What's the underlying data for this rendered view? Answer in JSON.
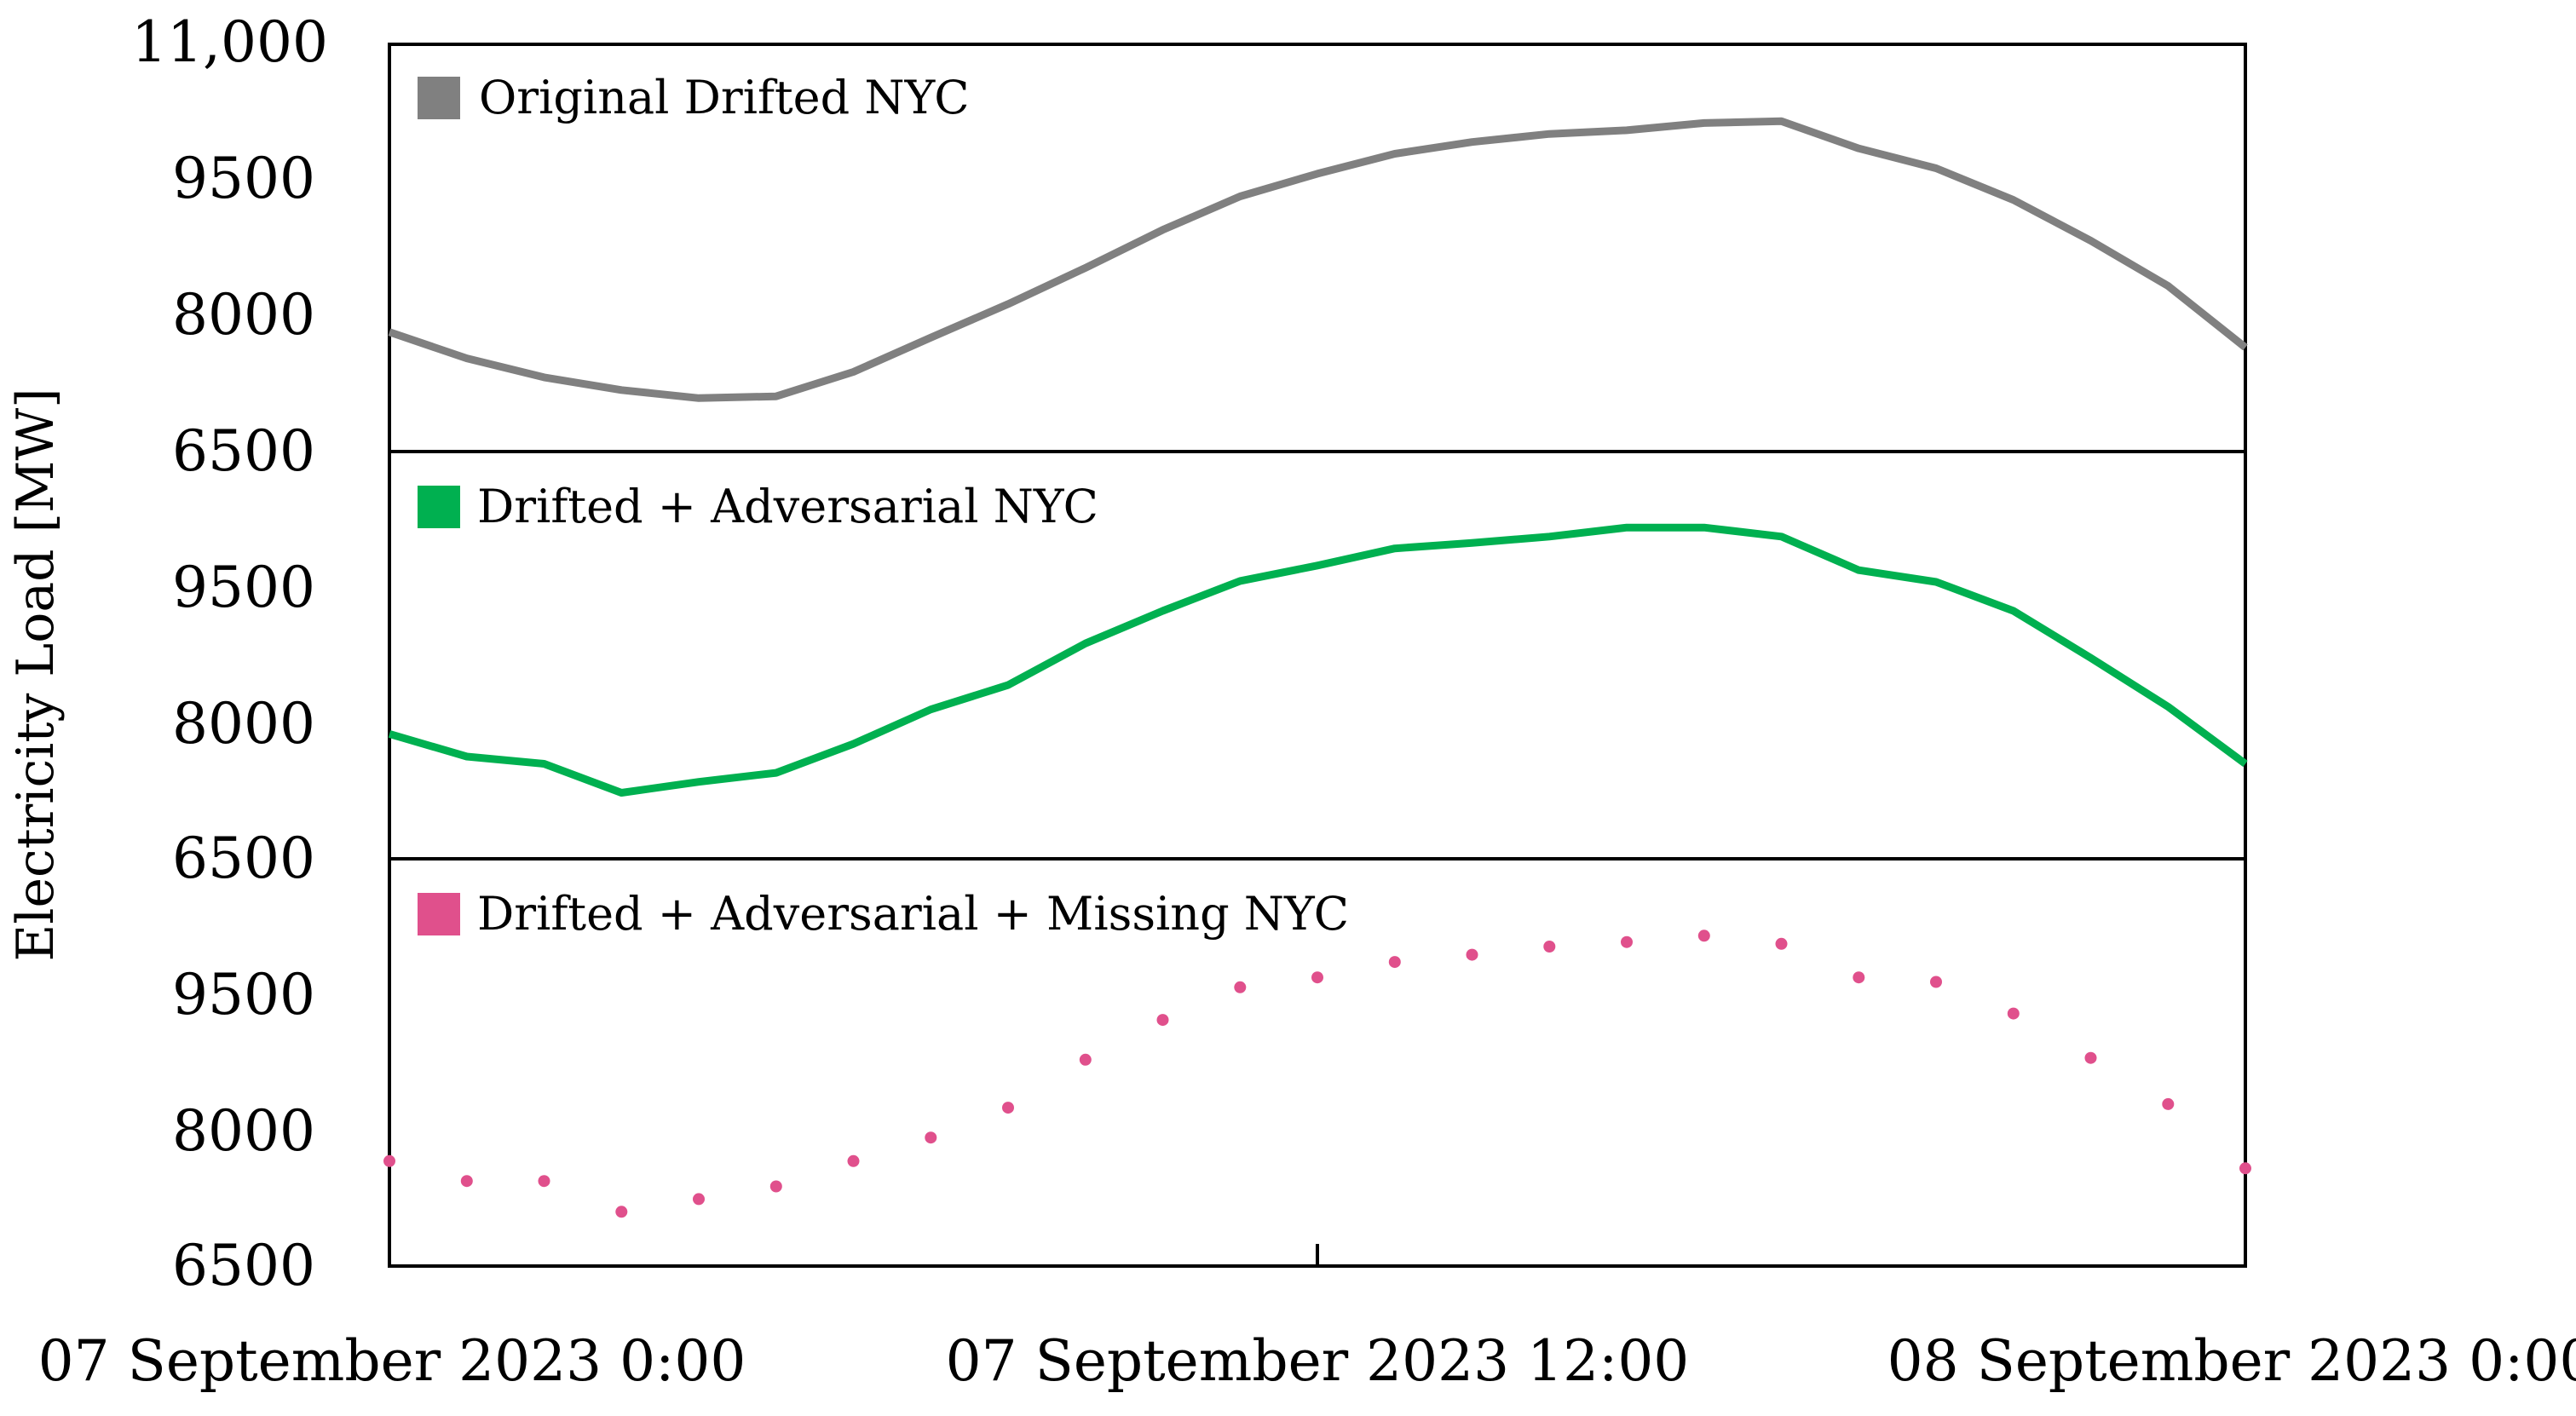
{
  "chart_data": {
    "type": "line",
    "ylabel": "Electricity Load [MW]",
    "x_ticks": [
      "07 September 2023 0:00",
      "07 September 2023 12:00",
      "08 September 2023 0:00"
    ],
    "x_range": [
      "07 September 2023 0:00",
      "08 September 2023 0:00"
    ],
    "y_ticks_top": [
      "11,000",
      "9500",
      "8000",
      "6500"
    ],
    "y_ticks_middle": [
      "9500",
      "8000",
      "6500"
    ],
    "y_ticks_bottom": [
      "9500",
      "8000",
      "6500"
    ],
    "ylim": [
      6500,
      11000
    ],
    "x_hours": [
      0,
      1,
      2,
      3,
      4,
      5,
      6,
      7,
      8,
      9,
      10,
      11,
      12,
      13,
      14,
      15,
      16,
      17,
      18,
      19,
      20,
      21,
      22,
      23,
      24
    ],
    "series": [
      {
        "name": "Original Drifted NYC",
        "color": "#808080",
        "style": "line",
        "values": [
          7820,
          7530,
          7320,
          7180,
          7090,
          7110,
          7380,
          7760,
          8130,
          8530,
          8950,
          9320,
          9570,
          9790,
          9920,
          10010,
          10050,
          10130,
          10150,
          9850,
          9630,
          9280,
          8830,
          8330,
          7650
        ]
      },
      {
        "name": "Drifted + Adversarial NYC",
        "color": "#00b050",
        "style": "line",
        "values": [
          7880,
          7630,
          7550,
          7230,
          7350,
          7450,
          7770,
          8150,
          8420,
          8880,
          9240,
          9570,
          9740,
          9930,
          9990,
          10060,
          10160,
          10160,
          10060,
          9690,
          9560,
          9240,
          8720,
          8180,
          7550
        ]
      },
      {
        "name": "Drifted + Adversarial + Missing NYC",
        "color": "#e0508c",
        "style": "dots",
        "values": [
          7660,
          7440,
          7440,
          7100,
          7240,
          7380,
          7660,
          7920,
          8250,
          8780,
          9220,
          9580,
          9690,
          9860,
          9940,
          10030,
          10080,
          10150,
          10060,
          9690,
          9640,
          9290,
          8800,
          8290,
          7580
        ]
      }
    ]
  }
}
